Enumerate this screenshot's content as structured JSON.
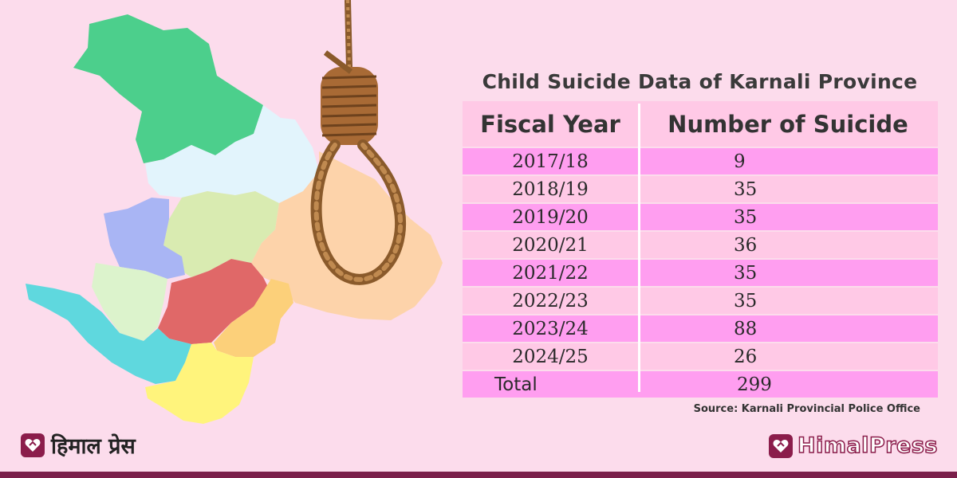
{
  "chart_data": {
    "type": "table",
    "title": "Child Suicide Data of Karnali Province",
    "columns": [
      "Fiscal Year",
      "Number of Suicide"
    ],
    "rows": [
      {
        "year": "2017/18",
        "value": 9
      },
      {
        "year": "2018/19",
        "value": 35
      },
      {
        "year": "2019/20",
        "value": 35
      },
      {
        "year": "2020/21",
        "value": 36
      },
      {
        "year": "2021/22",
        "value": 35
      },
      {
        "year": "2022/23",
        "value": 35
      },
      {
        "year": "2023/24",
        "value": 88
      },
      {
        "year": "2024/25",
        "value": 26
      }
    ],
    "total": {
      "label": "Total",
      "value": 299
    },
    "source": "Source: Karnali Provincial Police Office"
  },
  "branding": {
    "left_logo_text": "हिमाल प्रेस",
    "right_logo_text": "HimalPress",
    "brand_color": "#8b1d4b"
  },
  "colors": {
    "background": "#fcdcec",
    "row_odd": "#ff9ef0",
    "row_even": "#ffc9e6"
  }
}
